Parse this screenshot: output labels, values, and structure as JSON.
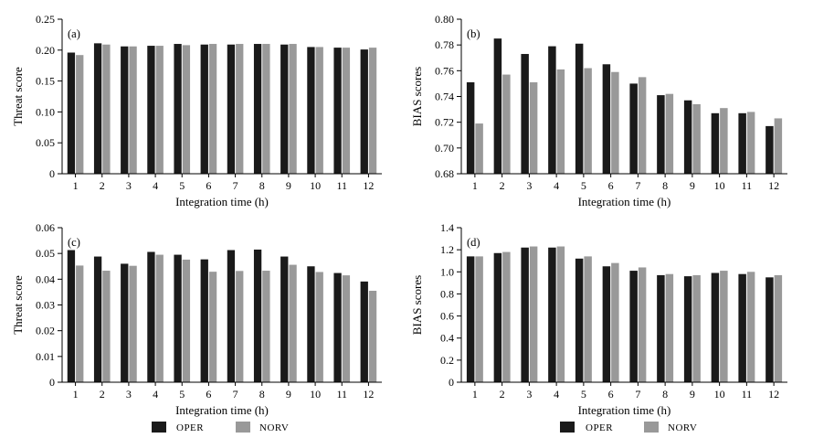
{
  "chart_data": [
    {
      "type": "bar",
      "panel": "(a)",
      "title": "",
      "xlabel": "Integration time (h)",
      "ylabel": "Threat score",
      "categories": [
        "1",
        "2",
        "3",
        "4",
        "5",
        "6",
        "7",
        "8",
        "9",
        "10",
        "11",
        "12"
      ],
      "ylim": [
        0,
        0.25
      ],
      "yticks": [
        "0",
        "0.05",
        "0.10",
        "0.15",
        "0.20",
        "0.25"
      ],
      "series": [
        {
          "name": "OPER",
          "color": "#1a1a1a",
          "values": [
            0.196,
            0.211,
            0.206,
            0.207,
            0.21,
            0.209,
            0.209,
            0.21,
            0.209,
            0.205,
            0.204,
            0.201
          ]
        },
        {
          "name": "NORV",
          "color": "#999999",
          "values": [
            0.192,
            0.209,
            0.206,
            0.207,
            0.208,
            0.21,
            0.21,
            0.21,
            0.21,
            0.205,
            0.204,
            0.204
          ]
        }
      ]
    },
    {
      "type": "bar",
      "panel": "(b)",
      "title": "",
      "xlabel": "Integration time (h)",
      "ylabel": "BIAS scores",
      "categories": [
        "1",
        "2",
        "3",
        "4",
        "5",
        "6",
        "7",
        "8",
        "9",
        "10",
        "11",
        "12"
      ],
      "ylim": [
        0.68,
        0.8
      ],
      "yticks": [
        "0.68",
        "0.70",
        "0.72",
        "0.74",
        "0.76",
        "0.78",
        "0.80"
      ],
      "series": [
        {
          "name": "OPER",
          "color": "#1a1a1a",
          "values": [
            0.751,
            0.785,
            0.773,
            0.779,
            0.781,
            0.765,
            0.75,
            0.741,
            0.737,
            0.727,
            0.727,
            0.717
          ]
        },
        {
          "name": "NORV",
          "color": "#999999",
          "values": [
            0.719,
            0.757,
            0.751,
            0.761,
            0.762,
            0.759,
            0.755,
            0.742,
            0.734,
            0.731,
            0.728,
            0.723
          ]
        }
      ]
    },
    {
      "type": "bar",
      "panel": "(c)",
      "title": "",
      "xlabel": "Integration time (h)",
      "ylabel": "Threat score",
      "categories": [
        "1",
        "2",
        "3",
        "4",
        "5",
        "6",
        "7",
        "8",
        "9",
        "10",
        "11",
        "12"
      ],
      "ylim": [
        0,
        0.06
      ],
      "yticks": [
        "0",
        "0.01",
        "0.02",
        "0.03",
        "0.04",
        "0.05",
        "0.06"
      ],
      "series": [
        {
          "name": "OPER",
          "color": "#1a1a1a",
          "values": [
            0.0513,
            0.0488,
            0.046,
            0.0506,
            0.0495,
            0.0477,
            0.0513,
            0.0515,
            0.0488,
            0.045,
            0.0424,
            0.0391
          ]
        },
        {
          "name": "NORV",
          "color": "#999999",
          "values": [
            0.0453,
            0.0433,
            0.0452,
            0.0495,
            0.0476,
            0.0429,
            0.0432,
            0.0433,
            0.0456,
            0.0428,
            0.0415,
            0.0355
          ]
        }
      ]
    },
    {
      "type": "bar",
      "panel": "(d)",
      "title": "",
      "xlabel": "Integration time (h)",
      "ylabel": "BIAS scores",
      "categories": [
        "1",
        "2",
        "3",
        "4",
        "5",
        "6",
        "7",
        "8",
        "9",
        "10",
        "11",
        "12"
      ],
      "ylim": [
        0,
        1.4
      ],
      "yticks": [
        "0",
        "0.2",
        "0.4",
        "0.6",
        "0.8",
        "1.0",
        "1.2",
        "1.4"
      ],
      "series": [
        {
          "name": "OPER",
          "color": "#1a1a1a",
          "values": [
            1.14,
            1.17,
            1.22,
            1.22,
            1.12,
            1.05,
            1.01,
            0.97,
            0.96,
            0.99,
            0.98,
            0.95
          ]
        },
        {
          "name": "NORV",
          "color": "#999999",
          "values": [
            1.14,
            1.18,
            1.23,
            1.23,
            1.14,
            1.08,
            1.04,
            0.98,
            0.97,
            1.01,
            1.0,
            0.97
          ]
        }
      ]
    }
  ],
  "legends": [
    {
      "items": [
        {
          "label": "OPER",
          "color": "#1a1a1a"
        },
        {
          "label": "NORV",
          "color": "#999999"
        }
      ]
    },
    {
      "items": [
        {
          "label": "OPER",
          "color": "#1a1a1a"
        },
        {
          "label": "NORV",
          "color": "#999999"
        }
      ]
    }
  ]
}
